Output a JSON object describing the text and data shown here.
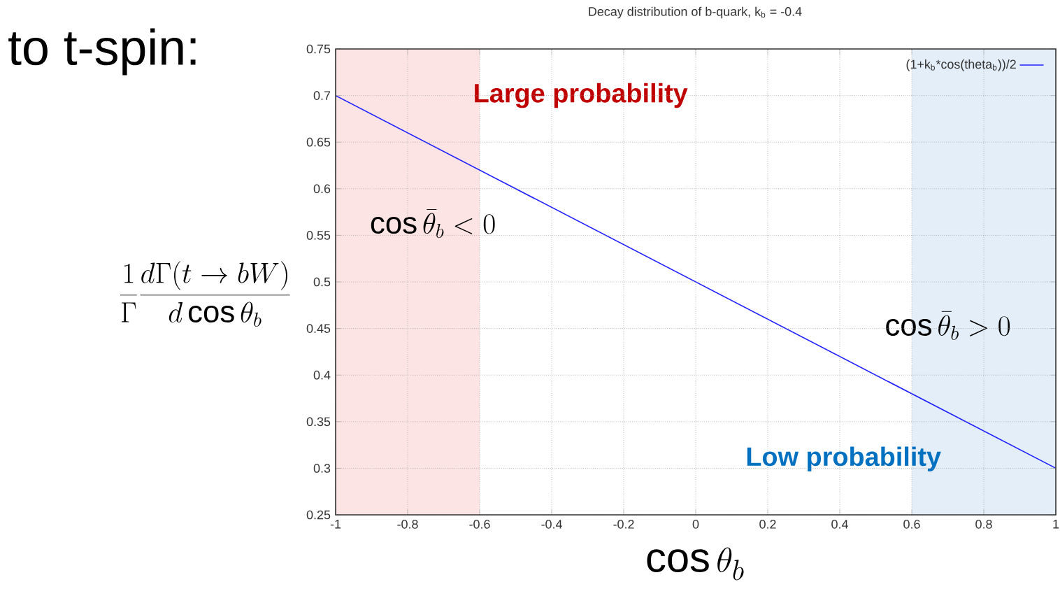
{
  "chart_data": {
    "type": "line",
    "title": "Decay distribution of b-quark, k$_{b}$ = -0.4",
    "xlabel": "\\cos\\theta_b",
    "ylabel": "\\frac{1}{\\Gamma}\\frac{d\\Gamma(t\\to bW)}{d\\cos\\theta_b}",
    "x": [
      -1,
      1
    ],
    "series": [
      {
        "name": "(1+k$_{b}$*cos(theta$_{b}$))/2",
        "color": "#2020ff",
        "values": [
          0.7,
          0.3
        ]
      }
    ],
    "xlim": [
      -1,
      1
    ],
    "ylim": [
      0.25,
      0.75
    ],
    "xticks": [
      -1,
      -0.8,
      -0.6,
      -0.4,
      -0.2,
      0,
      0.2,
      0.4,
      0.6,
      0.8,
      1
    ],
    "yticks": [
      0.25,
      0.3,
      0.35,
      0.4,
      0.45,
      0.5,
      0.55,
      0.6,
      0.65,
      0.7,
      0.75
    ],
    "bands": [
      {
        "axis": "x",
        "from": -1,
        "to": -0.6,
        "label": "\\cos\\bar\\theta_b < 0",
        "color": "#fde4e4"
      },
      {
        "axis": "x",
        "from": 0.6,
        "to": 1,
        "label": "\\cos\\bar\\theta_b > 0",
        "color": "#e3eef8"
      }
    ],
    "annotations": [
      "to t-spin:",
      "Large probability",
      "Low probability"
    ],
    "grid": true,
    "legend": "top right",
    "marker": "none",
    "line_style": "solid"
  }
}
